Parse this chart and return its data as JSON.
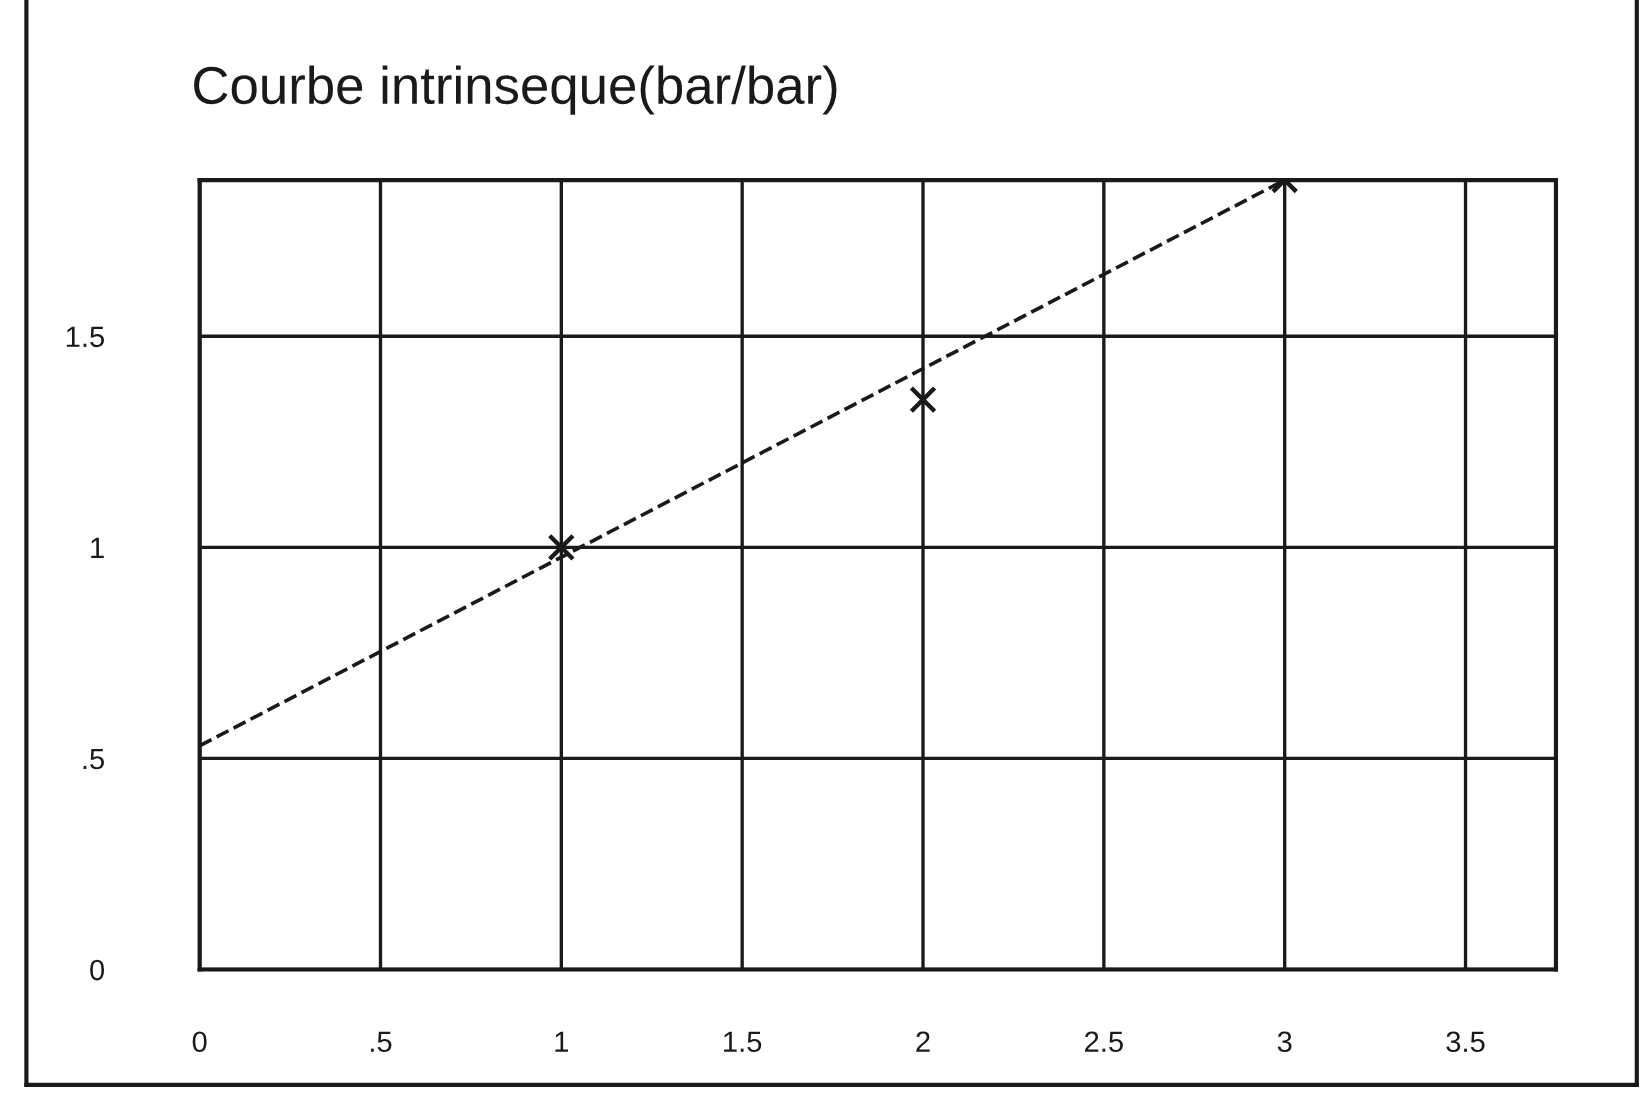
{
  "chart_data": {
    "type": "scatter",
    "title": "Courbe intrinseque(bar/bar)",
    "series": [
      {
        "x": [
          1,
          2,
          3
        ],
        "values": [
          1.0,
          1.35,
          1.87
        ],
        "color": "#1a1a1a",
        "marker": "cross"
      },
      {
        "type": "line",
        "x": [
          0,
          3
        ],
        "values": [
          0.53,
          1.87
        ],
        "color": "#1a1a1a",
        "line_style": "dashed"
      }
    ],
    "xlim": [
      0,
      3.75
    ],
    "ylim": [
      0,
      1.87
    ],
    "xticks": [
      0,
      {
        "value": 0.5,
        "label": ".5"
      },
      1,
      1.5,
      2,
      2.5,
      3,
      3.5
    ],
    "yticks": [
      0,
      {
        "value": 0.5,
        "label": ".5"
      },
      1,
      1.5
    ],
    "grid": true
  }
}
